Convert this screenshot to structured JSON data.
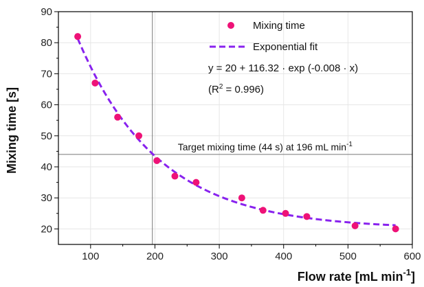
{
  "chart_data": {
    "type": "scatter",
    "xlabel": "Flow rate [mL min",
    "xlabel_sup": "-1",
    "xlabel_end": "]",
    "ylabel": "Mixing time [s]",
    "xlim": [
      50,
      600
    ],
    "ylim": [
      15,
      90
    ],
    "x_ticks": [
      100,
      200,
      300,
      400,
      500,
      600
    ],
    "y_ticks": [
      20,
      30,
      40,
      50,
      60,
      70,
      80,
      90
    ],
    "grid": true,
    "legend_position": "top-right",
    "series": [
      {
        "name": "Mixing time",
        "kind": "scatter",
        "color": "#ee1277",
        "x": [
          80,
          107,
          142,
          175,
          203,
          231,
          264,
          335,
          368,
          403,
          436,
          511,
          574
        ],
        "y": [
          82,
          67,
          56,
          50,
          42,
          37,
          35,
          30,
          26,
          25,
          24,
          21,
          20
        ]
      },
      {
        "name": "Exponential fit",
        "kind": "line",
        "style": "dashed",
        "color": "#8822ee",
        "x_range": [
          80,
          574
        ],
        "model": {
          "offset": 20,
          "amplitude": 116.32,
          "rate": -0.008
        }
      }
    ],
    "equation": "y = 20 + 116.32 · exp (-0.008 · x)",
    "r2_prefix": "(R",
    "r2_sup": "2",
    "r2_suffix": " = 0.996)",
    "annotation": {
      "text": "Target mixing time (44 s) at 196 mL min",
      "sup": "-1",
      "x": 196,
      "y": 44
    }
  }
}
